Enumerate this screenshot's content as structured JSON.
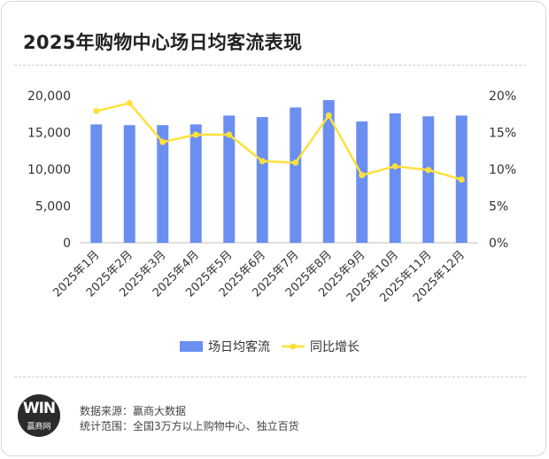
{
  "title": "2025年购物中心场日均客流表现",
  "footer": {
    "source": "数据来源：赢商大数据",
    "scope": "统计范围：全国3万方以上购物中心、独立百货"
  },
  "logo": {
    "mark": "WIN",
    "text": "赢商网"
  },
  "colors": {
    "bar": "#6b8ff0",
    "line": "#fde13a",
    "text": "#333333",
    "grid": "#e6e6e6"
  },
  "chart_data": {
    "type": "bar",
    "categories": [
      "2025年1月",
      "2025年2月",
      "2025年3月",
      "2025年4月",
      "2025年5月",
      "2025年6月",
      "2025年7月",
      "2025年8月",
      "2025年9月",
      "2025年10月",
      "2025年11月",
      "2025年12月"
    ],
    "series": [
      {
        "name": "场日均客流",
        "type": "bar",
        "axis": "left",
        "values": [
          16100,
          16000,
          16000,
          16100,
          17300,
          17100,
          18400,
          19400,
          16500,
          17600,
          17200,
          17300
        ]
      },
      {
        "name": "同比增长",
        "type": "line",
        "axis": "right",
        "values": [
          17.9,
          19.0,
          13.7,
          14.7,
          14.7,
          11.1,
          10.9,
          17.3,
          9.2,
          10.4,
          9.9,
          8.6
        ]
      }
    ],
    "y_left": {
      "ylim": [
        0,
        20000
      ],
      "ticks": [
        "0",
        "5,000",
        "10,000",
        "15,000",
        "20,000"
      ]
    },
    "y_right": {
      "ylim": [
        0,
        20
      ],
      "ticks": [
        "0%",
        "5%",
        "10%",
        "15%",
        "20%"
      ]
    },
    "legend": "bottom",
    "grid": false
  }
}
